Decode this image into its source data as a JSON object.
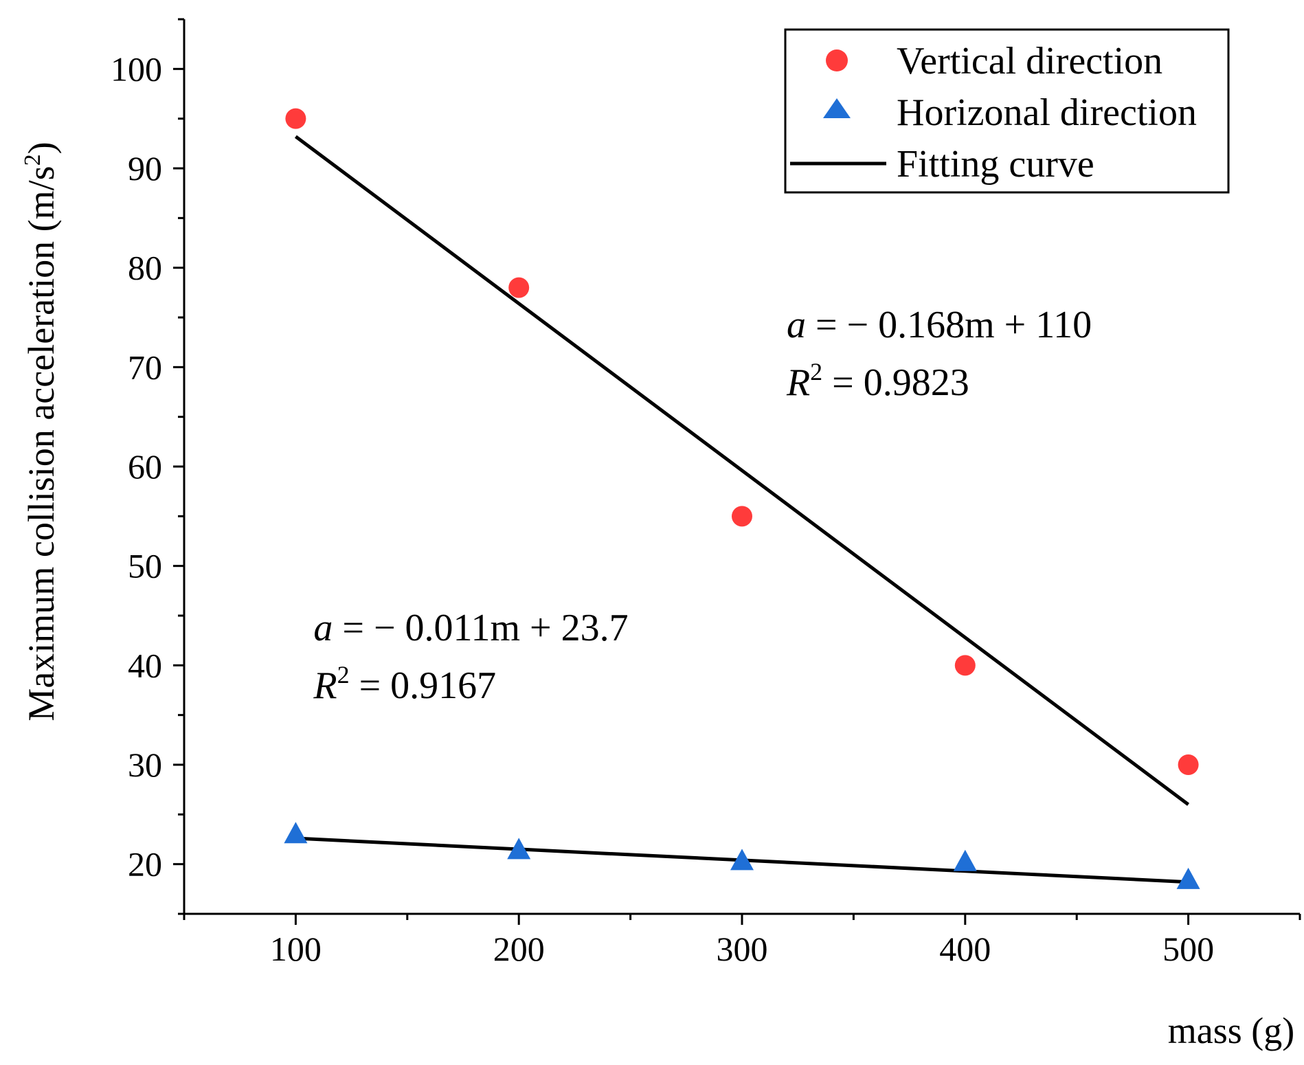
{
  "chart_data": {
    "type": "scatter",
    "xlabel": "mass (g)",
    "ylabel": "Maximum collision acceleration (m/s²)",
    "ylabel_main": "Maximum collision acceleration (m/s",
    "ylabel_sup": "2",
    "ylabel_close": ")",
    "xlim": [
      50,
      550
    ],
    "ylim": [
      15,
      105
    ],
    "x_ticks": [
      100,
      200,
      300,
      400,
      500
    ],
    "y_ticks": [
      20,
      30,
      40,
      50,
      60,
      70,
      80,
      90,
      100
    ],
    "x_minor_ticks": [
      50,
      150,
      250,
      350,
      450,
      550
    ],
    "y_minor_ticks": [
      15,
      25,
      35,
      45,
      55,
      65,
      75,
      85,
      95,
      105
    ],
    "series": [
      {
        "name": "Vertical direction",
        "marker": "circle",
        "color": "#ff3b3b",
        "x": [
          100,
          200,
          300,
          400,
          500
        ],
        "y": [
          95,
          78,
          55,
          40,
          30
        ]
      },
      {
        "name": "Horizonal direction",
        "marker": "triangle",
        "color": "#1f6fd6",
        "x": [
          100,
          200,
          300,
          400,
          500
        ],
        "y": [
          23.0,
          21.4,
          20.3,
          20.2,
          18.4
        ]
      }
    ],
    "fits": [
      {
        "name": "Fitting curve",
        "color": "#000000",
        "x": [
          100,
          500
        ],
        "y": [
          93.2,
          26.0
        ]
      },
      {
        "name": "Fitting curve",
        "color": "#000000",
        "x": [
          100,
          500
        ],
        "y": [
          22.6,
          18.2
        ]
      }
    ],
    "legend": {
      "position": "top-right",
      "entries": [
        "Vertical direction",
        "Horizonal direction",
        "Fitting curve"
      ]
    },
    "annotations": [
      {
        "var": "a",
        "rhs": " = − 0.168m + 110",
        "r2_var": "R",
        "r2_sup": "2",
        "r2_rhs": " = 0.9823",
        "at_x": 320,
        "at_y": 73
      },
      {
        "var": "a",
        "rhs": " =  − 0.011m + 23.7",
        "r2_var": "R",
        "r2_sup": "2",
        "r2_rhs": " = 0.9167",
        "at_x": 108,
        "at_y": 42.5
      }
    ]
  }
}
